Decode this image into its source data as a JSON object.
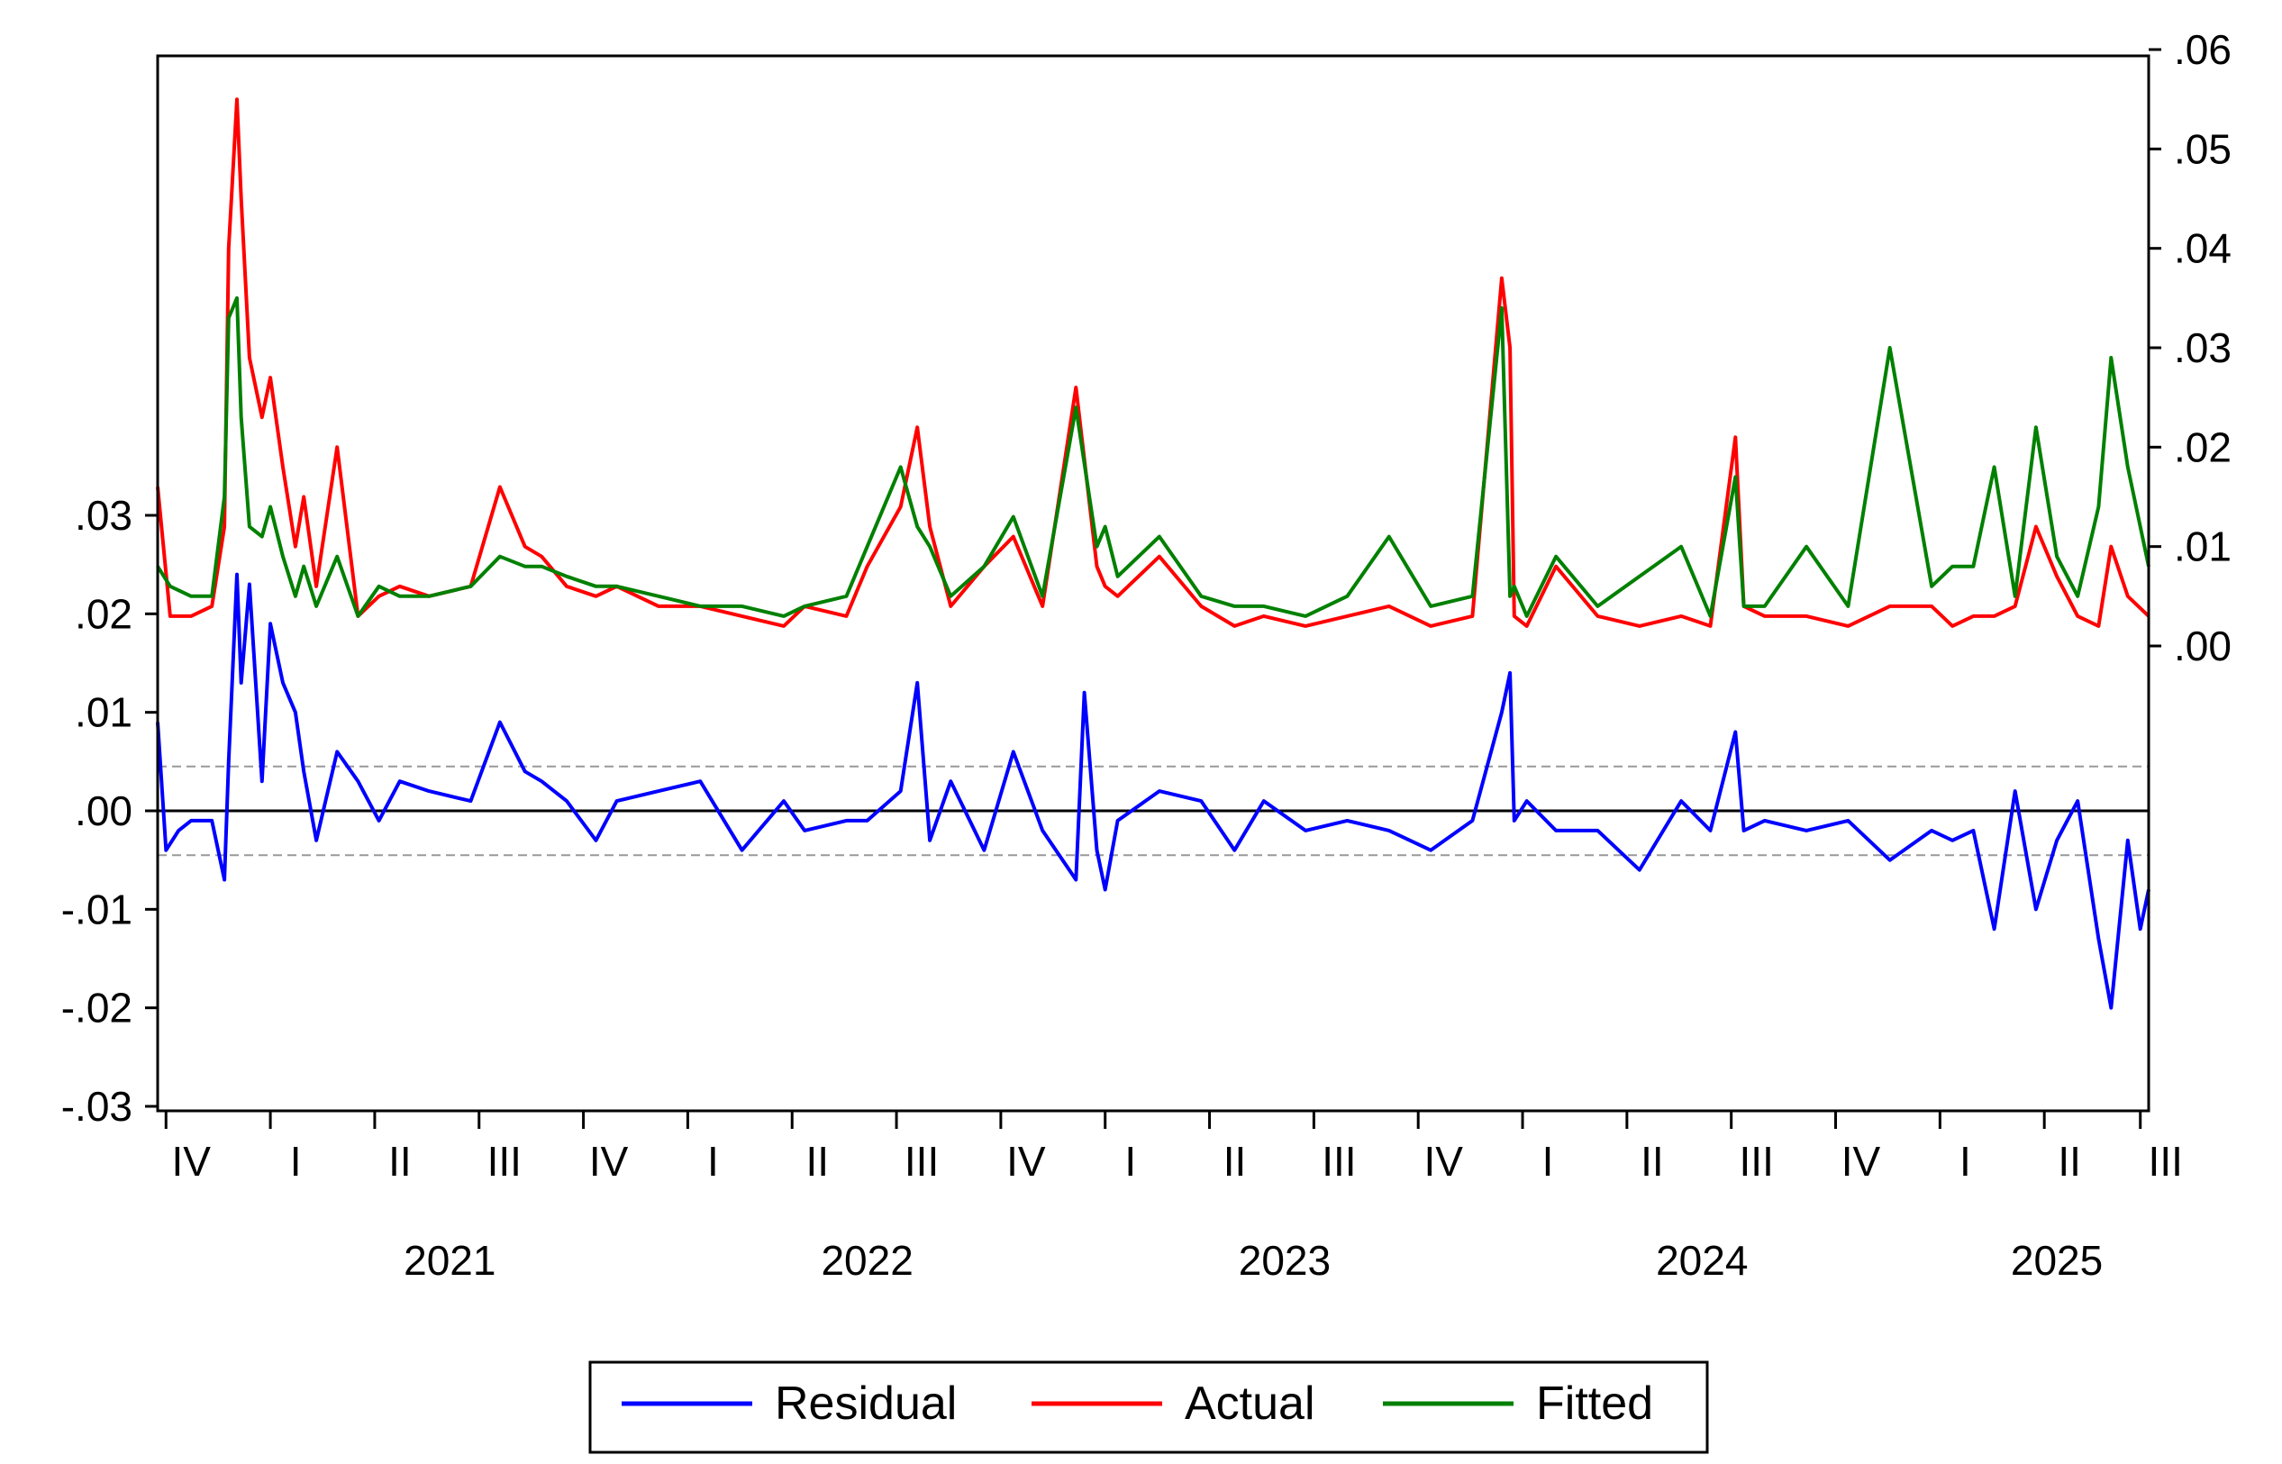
{
  "chart_data": {
    "type": "line",
    "title": "",
    "xlabel": "",
    "left_axis": {
      "ylim": [
        -0.03,
        0.03
      ],
      "ticks": [
        -0.03,
        -0.02,
        -0.01,
        0.0,
        0.01,
        0.02,
        0.03
      ],
      "tick_labels": [
        "-.03",
        "-.02",
        "-.01",
        ".00",
        ".01",
        ".02",
        ".03"
      ]
    },
    "right_axis": {
      "ylim": [
        0.0,
        0.06
      ],
      "ticks": [
        0.0,
        0.01,
        0.02,
        0.03,
        0.04,
        0.05,
        0.06
      ],
      "tick_labels": [
        ".00",
        ".01",
        ".02",
        ".03",
        ".04",
        ".05",
        ".06"
      ]
    },
    "xlim": [
      2020.8,
      2025.57
    ],
    "quarter_ticks": [
      {
        "label": "IV",
        "x": 2020.82
      },
      {
        "label": "I",
        "x": 2021.07
      },
      {
        "label": "II",
        "x": 2021.32
      },
      {
        "label": "III",
        "x": 2021.57
      },
      {
        "label": "IV",
        "x": 2021.82
      },
      {
        "label": "I",
        "x": 2022.07
      },
      {
        "label": "II",
        "x": 2022.32
      },
      {
        "label": "III",
        "x": 2022.57
      },
      {
        "label": "IV",
        "x": 2022.82
      },
      {
        "label": "I",
        "x": 2023.07
      },
      {
        "label": "II",
        "x": 2023.32
      },
      {
        "label": "III",
        "x": 2023.57
      },
      {
        "label": "IV",
        "x": 2023.82
      },
      {
        "label": "I",
        "x": 2024.07
      },
      {
        "label": "II",
        "x": 2024.32
      },
      {
        "label": "III",
        "x": 2024.57
      },
      {
        "label": "IV",
        "x": 2024.82
      },
      {
        "label": "I",
        "x": 2025.07
      },
      {
        "label": "II",
        "x": 2025.32
      },
      {
        "label": "III",
        "x": 2025.55
      }
    ],
    "year_labels": [
      {
        "label": "2021",
        "x": 2021.5
      },
      {
        "label": "2022",
        "x": 2022.5
      },
      {
        "label": "2023",
        "x": 2023.5
      },
      {
        "label": "2024",
        "x": 2024.5
      },
      {
        "label": "2025",
        "x": 2025.35
      }
    ],
    "residual_band": [
      -0.0045,
      0.0045
    ],
    "series": [
      {
        "name": "Actual",
        "axis": "right",
        "color": "#ff0000",
        "x": [
          2020.8,
          2020.83,
          2020.88,
          2020.93,
          2020.96,
          2020.97,
          2020.99,
          2021.0,
          2021.02,
          2021.05,
          2021.07,
          2021.1,
          2021.13,
          2021.15,
          2021.18,
          2021.23,
          2021.28,
          2021.33,
          2021.38,
          2021.45,
          2021.55,
          2021.62,
          2021.68,
          2021.72,
          2021.78,
          2021.85,
          2021.9,
          2022.0,
          2022.1,
          2022.2,
          2022.3,
          2022.35,
          2022.45,
          2022.5,
          2022.58,
          2022.62,
          2022.65,
          2022.7,
          2022.78,
          2022.85,
          2022.92,
          2023.0,
          2023.05,
          2023.07,
          2023.1,
          2023.2,
          2023.3,
          2023.38,
          2023.45,
          2023.55,
          2023.65,
          2023.75,
          2023.85,
          2023.95,
          2024.02,
          2024.04,
          2024.05,
          2024.08,
          2024.15,
          2024.25,
          2024.35,
          2024.45,
          2024.52,
          2024.58,
          2024.6,
          2024.65,
          2024.75,
          2024.85,
          2024.95,
          2025.05,
          2025.1,
          2025.15,
          2025.2,
          2025.25,
          2025.3,
          2025.35,
          2025.4,
          2025.45,
          2025.48,
          2025.52,
          2025.57
        ],
        "values": [
          0.016,
          0.003,
          0.003,
          0.004,
          0.012,
          0.04,
          0.055,
          0.045,
          0.029,
          0.023,
          0.027,
          0.018,
          0.01,
          0.015,
          0.006,
          0.02,
          0.003,
          0.005,
          0.006,
          0.005,
          0.006,
          0.016,
          0.01,
          0.009,
          0.006,
          0.005,
          0.006,
          0.004,
          0.004,
          0.003,
          0.002,
          0.004,
          0.003,
          0.008,
          0.014,
          0.022,
          0.012,
          0.004,
          0.008,
          0.011,
          0.004,
          0.026,
          0.008,
          0.006,
          0.005,
          0.009,
          0.004,
          0.002,
          0.003,
          0.002,
          0.003,
          0.004,
          0.002,
          0.003,
          0.037,
          0.03,
          0.003,
          0.002,
          0.008,
          0.003,
          0.002,
          0.003,
          0.002,
          0.021,
          0.004,
          0.003,
          0.003,
          0.002,
          0.004,
          0.004,
          0.002,
          0.003,
          0.003,
          0.004,
          0.012,
          0.007,
          0.003,
          0.002,
          0.01,
          0.005,
          0.003
        ]
      },
      {
        "name": "Fitted",
        "axis": "right",
        "color": "#008000",
        "x": [
          2020.8,
          2020.83,
          2020.88,
          2020.93,
          2020.96,
          2020.97,
          2020.99,
          2021.0,
          2021.02,
          2021.05,
          2021.07,
          2021.1,
          2021.13,
          2021.15,
          2021.18,
          2021.23,
          2021.28,
          2021.33,
          2021.38,
          2021.45,
          2021.55,
          2021.62,
          2021.68,
          2021.72,
          2021.78,
          2021.85,
          2021.9,
          2022.0,
          2022.1,
          2022.2,
          2022.3,
          2022.35,
          2022.45,
          2022.5,
          2022.58,
          2022.62,
          2022.65,
          2022.7,
          2022.78,
          2022.85,
          2022.92,
          2023.0,
          2023.05,
          2023.07,
          2023.1,
          2023.2,
          2023.3,
          2023.38,
          2023.45,
          2023.55,
          2023.65,
          2023.75,
          2023.85,
          2023.95,
          2024.02,
          2024.04,
          2024.05,
          2024.08,
          2024.15,
          2024.25,
          2024.35,
          2024.45,
          2024.52,
          2024.58,
          2024.6,
          2024.65,
          2024.75,
          2024.85,
          2024.95,
          2025.05,
          2025.1,
          2025.15,
          2025.2,
          2025.25,
          2025.3,
          2025.35,
          2025.4,
          2025.45,
          2025.48,
          2025.52,
          2025.57
        ],
        "values": [
          0.008,
          0.006,
          0.005,
          0.005,
          0.015,
          0.033,
          0.035,
          0.023,
          0.012,
          0.011,
          0.014,
          0.009,
          0.005,
          0.008,
          0.004,
          0.009,
          0.003,
          0.006,
          0.005,
          0.005,
          0.006,
          0.009,
          0.008,
          0.008,
          0.007,
          0.006,
          0.006,
          0.005,
          0.004,
          0.004,
          0.003,
          0.004,
          0.005,
          0.01,
          0.018,
          0.012,
          0.01,
          0.005,
          0.008,
          0.013,
          0.005,
          0.024,
          0.01,
          0.012,
          0.007,
          0.011,
          0.005,
          0.004,
          0.004,
          0.003,
          0.005,
          0.011,
          0.004,
          0.005,
          0.034,
          0.005,
          0.006,
          0.003,
          0.009,
          0.004,
          0.007,
          0.01,
          0.003,
          0.017,
          0.004,
          0.004,
          0.01,
          0.004,
          0.03,
          0.006,
          0.008,
          0.008,
          0.018,
          0.005,
          0.022,
          0.009,
          0.005,
          0.014,
          0.029,
          0.018,
          0.008
        ]
      },
      {
        "name": "Residual",
        "axis": "left",
        "color": "#0000ff",
        "x": [
          2020.8,
          2020.82,
          2020.85,
          2020.88,
          2020.93,
          2020.96,
          2020.97,
          2020.99,
          2021.0,
          2021.02,
          2021.05,
          2021.07,
          2021.1,
          2021.13,
          2021.15,
          2021.18,
          2021.23,
          2021.28,
          2021.33,
          2021.38,
          2021.45,
          2021.55,
          2021.62,
          2021.68,
          2021.72,
          2021.78,
          2021.85,
          2021.9,
          2022.0,
          2022.1,
          2022.2,
          2022.3,
          2022.35,
          2022.45,
          2022.5,
          2022.58,
          2022.62,
          2022.65,
          2022.7,
          2022.78,
          2022.85,
          2022.92,
          2023.0,
          2023.02,
          2023.05,
          2023.07,
          2023.1,
          2023.2,
          2023.3,
          2023.38,
          2023.45,
          2023.55,
          2023.65,
          2023.75,
          2023.85,
          2023.95,
          2024.02,
          2024.04,
          2024.05,
          2024.08,
          2024.15,
          2024.25,
          2024.35,
          2024.45,
          2024.52,
          2024.58,
          2024.6,
          2024.65,
          2024.75,
          2024.85,
          2024.95,
          2025.05,
          2025.1,
          2025.15,
          2025.2,
          2025.25,
          2025.3,
          2025.35,
          2025.4,
          2025.45,
          2025.48,
          2025.52,
          2025.55,
          2025.57
        ],
        "values": [
          0.009,
          -0.004,
          -0.002,
          -0.001,
          -0.001,
          -0.007,
          0.005,
          0.024,
          0.013,
          0.023,
          0.003,
          0.019,
          0.013,
          0.01,
          0.004,
          -0.003,
          0.006,
          0.003,
          -0.001,
          0.003,
          0.002,
          0.001,
          0.009,
          0.004,
          0.003,
          0.001,
          -0.003,
          0.001,
          0.002,
          0.003,
          -0.004,
          0.001,
          -0.002,
          -0.001,
          -0.001,
          0.002,
          0.013,
          -0.003,
          0.003,
          -0.004,
          0.006,
          -0.002,
          -0.007,
          0.012,
          -0.004,
          -0.008,
          -0.001,
          0.002,
          0.001,
          -0.004,
          0.001,
          -0.002,
          -0.001,
          -0.002,
          -0.004,
          -0.001,
          0.01,
          0.014,
          -0.001,
          0.001,
          -0.002,
          -0.002,
          -0.006,
          0.001,
          -0.002,
          0.008,
          -0.002,
          -0.001,
          -0.002,
          -0.001,
          -0.005,
          -0.002,
          -0.003,
          -0.002,
          -0.012,
          0.002,
          -0.01,
          -0.003,
          0.001,
          -0.013,
          -0.02,
          -0.003,
          -0.012,
          -0.008
        ]
      }
    ],
    "legend": {
      "placement": "bottom-center",
      "entries": [
        {
          "name": "Residual",
          "color": "#0000ff"
        },
        {
          "name": "Actual",
          "color": "#ff0000"
        },
        {
          "name": "Fitted",
          "color": "#008000"
        }
      ]
    }
  }
}
